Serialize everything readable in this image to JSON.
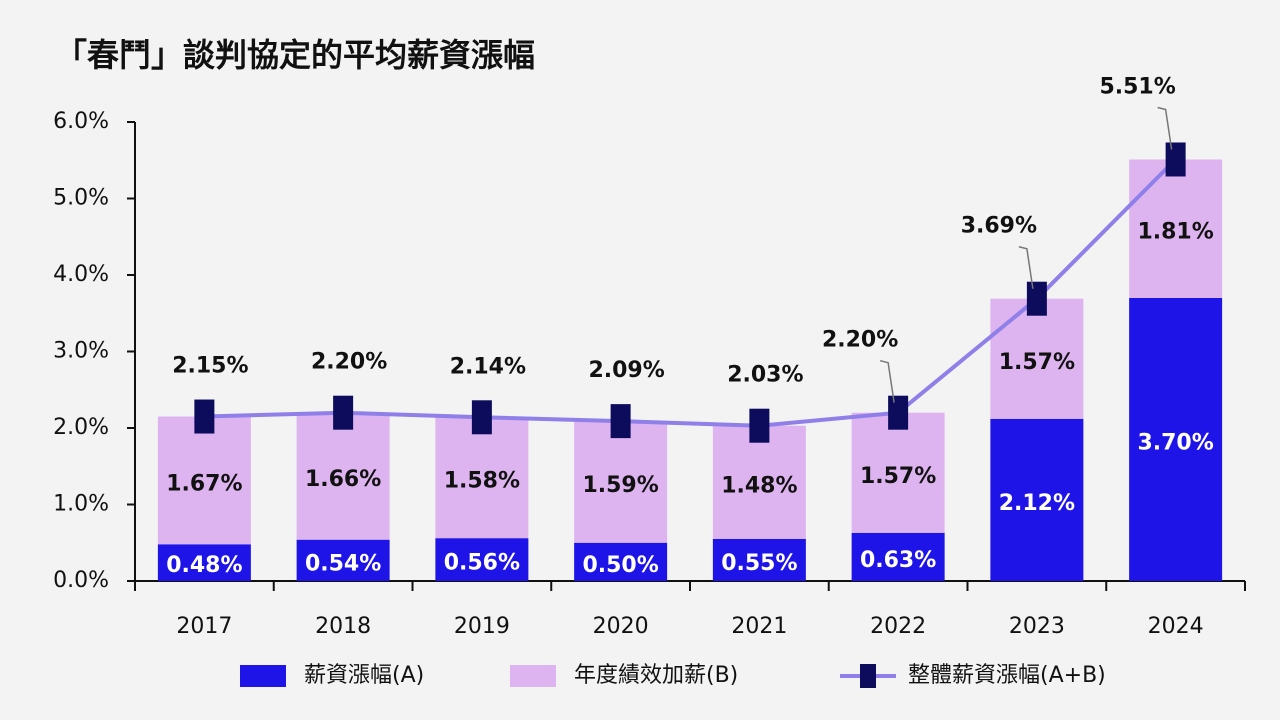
{
  "chart_data": {
    "type": "stacked-bar-line",
    "title": "「春鬥」談判協定的平均薪資漲幅",
    "categories": [
      "2017",
      "2018",
      "2019",
      "2020",
      "2021",
      "2022",
      "2023",
      "2024"
    ],
    "series": [
      {
        "name": "薪資漲幅(A)",
        "type": "bar",
        "color": "#1f14e8",
        "values": [
          0.48,
          0.54,
          0.56,
          0.5,
          0.55,
          0.63,
          2.12,
          3.7
        ],
        "value_labels": [
          "0.48%",
          "0.54%",
          "0.56%",
          "0.50%",
          "0.55%",
          "0.63%",
          "2.12%",
          "3.70%"
        ]
      },
      {
        "name": "年度績效加薪(B)",
        "type": "bar",
        "color": "#ddb4f0",
        "values": [
          1.67,
          1.66,
          1.58,
          1.59,
          1.48,
          1.57,
          1.57,
          1.81
        ],
        "value_labels": [
          "1.67%",
          "1.66%",
          "1.58%",
          "1.59%",
          "1.48%",
          "1.57%",
          "1.57%",
          "1.81%"
        ]
      },
      {
        "name": "整體薪資漲幅(A+B)",
        "type": "line",
        "color": "#8f7fe8",
        "marker_color": "#0d0c5c",
        "values": [
          2.15,
          2.2,
          2.14,
          2.09,
          2.03,
          2.2,
          3.69,
          5.51
        ],
        "value_labels": [
          "2.15%",
          "2.20%",
          "2.14%",
          "2.09%",
          "2.03%",
          "2.20%",
          "3.69%",
          "5.51%"
        ]
      }
    ],
    "ylim": [
      0,
      6
    ],
    "yticks": [
      {
        "value": 0,
        "label": "0.0%"
      },
      {
        "value": 1,
        "label": "1.0%"
      },
      {
        "value": 2,
        "label": "2.0%"
      },
      {
        "value": 3,
        "label": "3.0%"
      },
      {
        "value": 4,
        "label": "4.0%"
      },
      {
        "value": 5,
        "label": "5.0%"
      },
      {
        "value": 6,
        "label": "6.0%"
      }
    ],
    "grid": false
  }
}
